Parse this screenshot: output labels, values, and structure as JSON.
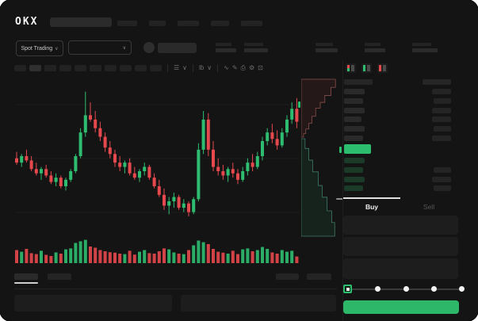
{
  "header": {
    "logo": "OKX",
    "nav_widths": [
      25,
      21,
      27,
      23,
      27
    ]
  },
  "trading_bar": {
    "market_selector": "Spot Trading",
    "market_selector_chevron": "∨",
    "pair_selector_chevron": "∨",
    "stats_group_a": [
      {
        "t": 20,
        "b": 26
      },
      {
        "t": 24,
        "b": 30
      }
    ],
    "stats_group_b": [
      {
        "t": 22,
        "b": 28
      },
      {
        "t": 20,
        "b": 26
      },
      {
        "t": 24,
        "b": 32
      }
    ]
  },
  "toolbar": {
    "interval_count": 10,
    "active_interval_index": 1,
    "icons": [
      {
        "name": "candle-style-icon",
        "glyph": "☰"
      },
      {
        "name": "candle-style-chevron-icon",
        "glyph": "∨"
      },
      {
        "name": "divider",
        "glyph": ""
      },
      {
        "name": "overlay-icon",
        "glyph": "Ɩɓ"
      },
      {
        "name": "overlay-chevron-icon",
        "glyph": "∨"
      },
      {
        "name": "divider",
        "glyph": ""
      },
      {
        "name": "line-tool-icon",
        "glyph": "∿"
      },
      {
        "name": "draw-icon",
        "glyph": "✎"
      },
      {
        "name": "camera-icon",
        "glyph": "⎙"
      },
      {
        "name": "settings-gear-icon",
        "glyph": "⚙"
      },
      {
        "name": "fullscreen-icon",
        "glyph": "⊡"
      }
    ]
  },
  "chart_data": {
    "type": "candlestick",
    "up_color": "#2EBD70",
    "down_color": "#E5484D",
    "grid_color": "#1d1d1d",
    "y_range": [
      20,
      90
    ],
    "candles": [
      [
        54,
        57,
        51,
        52
      ],
      [
        52,
        56,
        50,
        55
      ],
      [
        55,
        58,
        52,
        53
      ],
      [
        53,
        55,
        48,
        49
      ],
      [
        49,
        52,
        46,
        47
      ],
      [
        47,
        50,
        44,
        49
      ],
      [
        49,
        51,
        45,
        46
      ],
      [
        46,
        48,
        42,
        43
      ],
      [
        43,
        47,
        41,
        45
      ],
      [
        45,
        46,
        40,
        41
      ],
      [
        41,
        45,
        39,
        44
      ],
      [
        44,
        49,
        43,
        48
      ],
      [
        48,
        56,
        47,
        55
      ],
      [
        55,
        68,
        54,
        66
      ],
      [
        66,
        85,
        64,
        74
      ],
      [
        74,
        80,
        71,
        72
      ],
      [
        72,
        76,
        66,
        68
      ],
      [
        68,
        71,
        62,
        64
      ],
      [
        64,
        66,
        57,
        59
      ],
      [
        59,
        62,
        54,
        56
      ],
      [
        56,
        58,
        50,
        52
      ],
      [
        52,
        55,
        48,
        50
      ],
      [
        50,
        53,
        47,
        52
      ],
      [
        52,
        54,
        46,
        47
      ],
      [
        47,
        50,
        44,
        45
      ],
      [
        45,
        49,
        43,
        48
      ],
      [
        48,
        52,
        46,
        50
      ],
      [
        50,
        51,
        44,
        45
      ],
      [
        45,
        47,
        40,
        41
      ],
      [
        41,
        44,
        36,
        37
      ],
      [
        37,
        40,
        30,
        32
      ],
      [
        32,
        36,
        28,
        34
      ],
      [
        34,
        38,
        31,
        36
      ],
      [
        36,
        37,
        30,
        31
      ],
      [
        31,
        35,
        29,
        33
      ],
      [
        33,
        34,
        27,
        29
      ],
      [
        29,
        36,
        28,
        35
      ],
      [
        35,
        61,
        34,
        58
      ],
      [
        58,
        76,
        56,
        72
      ],
      [
        72,
        75,
        55,
        58
      ],
      [
        58,
        62,
        48,
        50
      ],
      [
        50,
        54,
        46,
        48
      ],
      [
        48,
        51,
        44,
        46
      ],
      [
        46,
        50,
        43,
        49
      ],
      [
        49,
        52,
        45,
        47
      ],
      [
        47,
        49,
        42,
        44
      ],
      [
        44,
        50,
        43,
        48
      ],
      [
        48,
        54,
        46,
        52
      ],
      [
        52,
        56,
        48,
        50
      ],
      [
        50,
        57,
        49,
        55
      ],
      [
        55,
        64,
        53,
        62
      ],
      [
        62,
        68,
        60,
        66
      ],
      [
        66,
        70,
        61,
        63
      ],
      [
        63,
        67,
        58,
        60
      ],
      [
        60,
        68,
        59,
        66
      ],
      [
        66,
        74,
        64,
        72
      ],
      [
        72,
        80,
        70,
        77
      ],
      [
        77,
        82,
        68,
        71
      ]
    ],
    "volumes": [
      55,
      48,
      60,
      42,
      38,
      52,
      35,
      30,
      45,
      40,
      58,
      62,
      85,
      92,
      98,
      70,
      65,
      55,
      50,
      46,
      44,
      40,
      38,
      52,
      36,
      48,
      55,
      42,
      40,
      50,
      62,
      58,
      45,
      40,
      38,
      55,
      75,
      95,
      88,
      80,
      60,
      48,
      44,
      40,
      52,
      38,
      58,
      62,
      50,
      55,
      68,
      60,
      45,
      40,
      55,
      48,
      52,
      28
    ],
    "depth": {
      "ask_line_color": "#8a4f4c",
      "ask_fill_color": "rgba(229,72,77,0.08)",
      "bid_line_color": "#3f7a68",
      "bid_fill_color": "rgba(46,189,112,0.09)",
      "asks_steps": [
        [
          0.02,
          0
        ],
        [
          0.06,
          0.06
        ],
        [
          0.12,
          0.14
        ],
        [
          0.2,
          0.24
        ],
        [
          0.28,
          0.36
        ],
        [
          0.38,
          0.5
        ],
        [
          0.5,
          0.6
        ],
        [
          0.62,
          0.72
        ],
        [
          0.78,
          0.86
        ],
        [
          0.9,
          1.0
        ]
      ],
      "bids_steps": [
        [
          0.03,
          0
        ],
        [
          0.1,
          0.1
        ],
        [
          0.2,
          0.22
        ],
        [
          0.3,
          0.34
        ],
        [
          0.45,
          0.48
        ],
        [
          0.55,
          0.6
        ],
        [
          0.68,
          0.74
        ],
        [
          0.8,
          0.86
        ],
        [
          0.88,
          1.0
        ]
      ]
    }
  },
  "orderbook": {
    "view_icons": [
      {
        "name": "book-combined-view-icon",
        "rows": [
          "#E5484D",
          "#E5484D",
          "#2EBD70",
          "#2EBD70"
        ]
      },
      {
        "name": "book-bids-view-icon",
        "rows": [
          "#2EBD70",
          "#2EBD70",
          "#2EBD70",
          "#2EBD70"
        ]
      },
      {
        "name": "book-asks-view-icon",
        "rows": [
          "#E5484D",
          "#E5484D",
          "#E5484D",
          "#E5484D"
        ]
      }
    ],
    "header_bar_width": 36,
    "asks": [
      {
        "p": 26,
        "a": 24
      },
      {
        "p": 24,
        "a": 22
      },
      {
        "p": 26,
        "a": 24
      },
      {
        "p": 22,
        "a": 24
      },
      {
        "p": 26,
        "a": 22
      },
      {
        "p": 24,
        "a": 24
      }
    ],
    "last_price_color": "#2CBE6E",
    "bids": [
      {
        "p": 26,
        "a": 0
      },
      {
        "p": 24,
        "a": 22
      },
      {
        "p": 26,
        "a": 24
      },
      {
        "p": 24,
        "a": 22
      }
    ],
    "bid_bar_color": "#1b3a28",
    "ask_bar_color": "#2a2a2a",
    "amount_bar_color": "#242424"
  },
  "order_panel": {
    "buy_tab": "Buy",
    "sell_tab": "Sell",
    "input_box_count": 3,
    "slider_fractions": [
      0.25,
      0.5,
      0.75,
      1.0
    ],
    "buy_button_color": "#2DB769"
  }
}
